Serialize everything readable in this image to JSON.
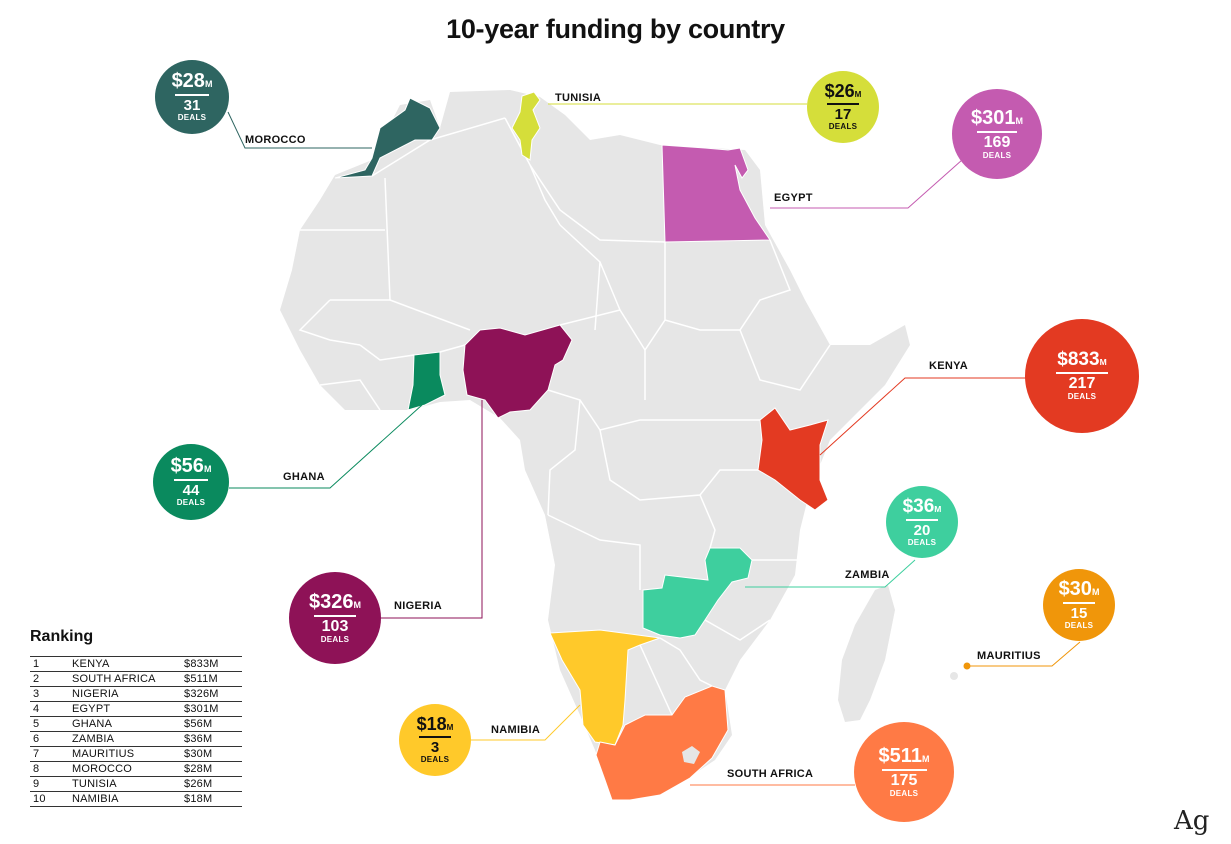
{
  "title": "10-year funding  by country",
  "colors": {
    "land": "#e6e6e6",
    "border": "#ffffff",
    "kenya": "#e33a22",
    "south_africa": "#ff7a45",
    "nigeria": "#8e1257",
    "egypt": "#c45bb0",
    "ghana": "#0a8a5e",
    "zambia": "#3ecf9e",
    "mauritius": "#f0960a",
    "morocco": "#2e6561",
    "tunisia": "#d5de3a",
    "namibia": "#ffc92a"
  },
  "countries": [
    {
      "id": "morocco",
      "name": "MOROCCO",
      "amount": "$28",
      "unit": "M",
      "deals": "31",
      "deals_label": "DEALS"
    },
    {
      "id": "tunisia",
      "name": "TUNISIA",
      "amount": "$26",
      "unit": "M",
      "deals": "17",
      "deals_label": "DEALS"
    },
    {
      "id": "egypt",
      "name": "EGYPT",
      "amount": "$301",
      "unit": "M",
      "deals": "169",
      "deals_label": "DEALS"
    },
    {
      "id": "kenya",
      "name": "KENYA",
      "amount": "$833",
      "unit": "M",
      "deals": "217",
      "deals_label": "DEALS"
    },
    {
      "id": "ghana",
      "name": "GHANA",
      "amount": "$56",
      "unit": "M",
      "deals": "44",
      "deals_label": "DEALS"
    },
    {
      "id": "zambia",
      "name": "ZAMBIA",
      "amount": "$36",
      "unit": "M",
      "deals": "20",
      "deals_label": "DEALS"
    },
    {
      "id": "nigeria",
      "name": "NIGERIA",
      "amount": "$326",
      "unit": "M",
      "deals": "103",
      "deals_label": "DEALS"
    },
    {
      "id": "mauritius",
      "name": "MAURITIUS",
      "amount": "$30",
      "unit": "M",
      "deals": "15",
      "deals_label": "DEALS"
    },
    {
      "id": "namibia",
      "name": "NAMIBIA",
      "amount": "$18",
      "unit": "M",
      "deals": "3",
      "deals_label": "DEALS"
    },
    {
      "id": "south_africa",
      "name": "SOUTH AFRICA",
      "amount": "$511",
      "unit": "M",
      "deals": "175",
      "deals_label": "DEALS"
    }
  ],
  "ranking": {
    "title": "Ranking",
    "rows": [
      {
        "rank": "1",
        "country": "KENYA",
        "value": "$833M"
      },
      {
        "rank": "2",
        "country": "SOUTH AFRICA",
        "value": "$511M"
      },
      {
        "rank": "3",
        "country": "NIGERIA",
        "value": "$326M"
      },
      {
        "rank": "4",
        "country": "EGYPT",
        "value": "$301M"
      },
      {
        "rank": "5",
        "country": "GHANA",
        "value": "$56M"
      },
      {
        "rank": "6",
        "country": "ZAMBIA",
        "value": "$36M"
      },
      {
        "rank": "7",
        "country": "MAURITIUS",
        "value": "$30M"
      },
      {
        "rank": "8",
        "country": "MOROCCO",
        "value": "$28M"
      },
      {
        "rank": "9",
        "country": "TUNISIA",
        "value": "$26M"
      },
      {
        "rank": "10",
        "country": "NAMIBIA",
        "value": "$18M"
      }
    ]
  },
  "logo": "Ag"
}
